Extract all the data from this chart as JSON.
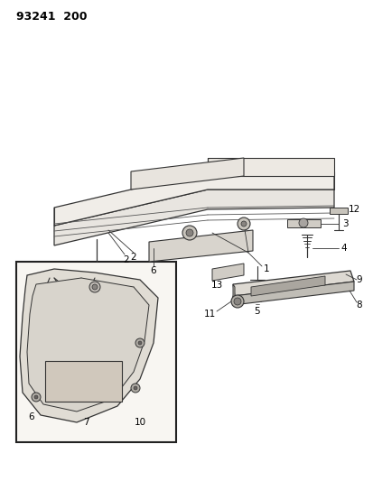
{
  "title_text": "93241  200",
  "background_color": "#ffffff",
  "line_color": "#333333",
  "label_color": "#000000",
  "figsize": [
    4.14,
    5.33
  ],
  "dpi": 100
}
